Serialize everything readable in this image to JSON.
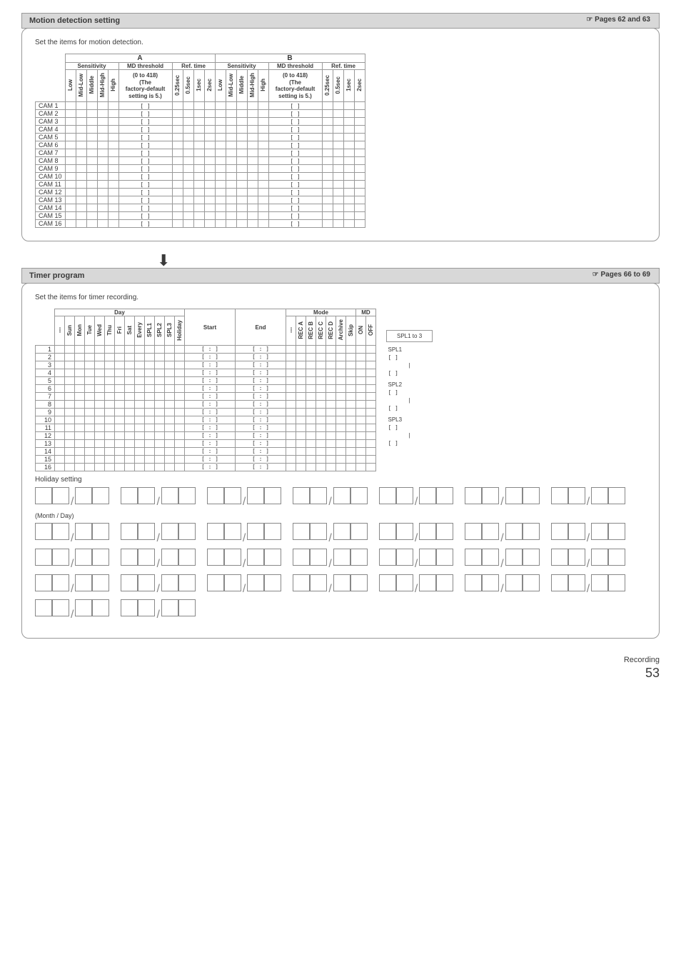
{
  "section1": {
    "title": "Motion detection setting",
    "pageRef": "☞ Pages 62 and 63",
    "intro": "Set the items for motion detection.",
    "groupA": "A",
    "groupB": "B",
    "hdr_sensitivity": "Sensitivity",
    "hdr_mdthreshold": "MD threshold",
    "hdr_reftime": "Ref. time",
    "md_note": "(0 to 418)\n(The\nfactory-default\nsetting is 5.)",
    "sens_cols": [
      "Low",
      "Mid-Low",
      "Middle",
      "Mid-High",
      "High"
    ],
    "ref_cols": [
      "0.25sec",
      "0.5sec",
      "1sec",
      "2sec"
    ],
    "rows": [
      "CAM 1",
      "CAM 2",
      "CAM 3",
      "CAM 4",
      "CAM 5",
      "CAM 6",
      "CAM 7",
      "CAM 8",
      "CAM 9",
      "CAM 10",
      "CAM 11",
      "CAM 12",
      "CAM 13",
      "CAM 14",
      "CAM 15",
      "CAM 16"
    ]
  },
  "section2": {
    "title": "Timer program",
    "pageRef": "☞ Pages 66 to 69",
    "intro": "Set the items for timer recording.",
    "hdr_day": "Day",
    "hdr_mode": "Mode",
    "hdr_md": "MD",
    "hdr_start": "Start",
    "hdr_end": "End",
    "hdr_spl": "SPL1 to 3",
    "day_cols": [
      "---",
      "Sun",
      "Mon",
      "Tue",
      "Wed",
      "Thu",
      "Fri",
      "Sat",
      "Every",
      "SPL1",
      "SPL2",
      "SPL3",
      "Holiday"
    ],
    "mode_cols": [
      "---",
      "REC A",
      "REC B",
      "REC C",
      "REC D",
      "Archive",
      "Skip"
    ],
    "md_cols": [
      "ON",
      "OFF"
    ],
    "rows": [
      "1",
      "2",
      "3",
      "4",
      "5",
      "6",
      "7",
      "8",
      "9",
      "10",
      "11",
      "12",
      "13",
      "14",
      "15",
      "16"
    ],
    "spl_labels": [
      "SPL1",
      "SPL2",
      "SPL3"
    ],
    "holiday_title": "Holiday setting",
    "holiday_sub": "(Month / Day)"
  },
  "footer_text": "Recording",
  "page_number": "53"
}
